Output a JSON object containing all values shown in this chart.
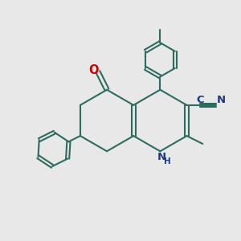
{
  "bg_color": "#e8e8e8",
  "bond_color": "#2d6b5e",
  "n_color": "#1a3a8a",
  "o_color": "#cc0000",
  "lw": 1.5,
  "fig_size": [
    3.0,
    3.0
  ],
  "dpi": 100,
  "xlim": [
    0,
    10
  ],
  "ylim": [
    0,
    10
  ]
}
